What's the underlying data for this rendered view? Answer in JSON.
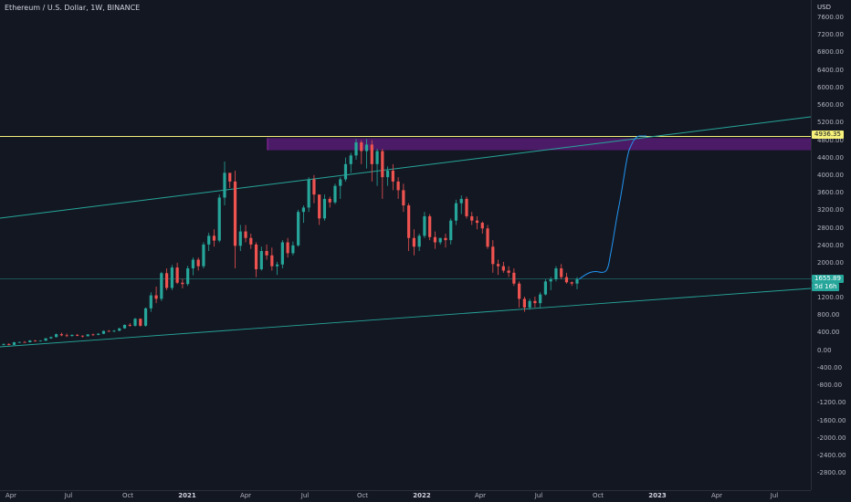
{
  "header": {
    "symbol": "Ethereum / U.S. Dollar, 1W, BINANCE",
    "currency": "USD"
  },
  "y_axis": {
    "labels": [
      "7600.00",
      "7200.00",
      "6800.00",
      "6400.00",
      "6000.00",
      "5600.00",
      "5200.00",
      "4800.00",
      "4400.00",
      "4000.00",
      "3600.00",
      "3200.00",
      "2800.00",
      "2400.00",
      "2000.00",
      "1600.00",
      "1200.00",
      "800.00",
      "400.00",
      "0.00",
      "-400.00",
      "-800.00",
      "-1200.00",
      "-1600.00",
      "-2000.00",
      "-2400.00",
      "-2800.00"
    ]
  },
  "x_axis": {
    "labels": [
      {
        "text": "Apr",
        "bold": false
      },
      {
        "text": "Jul",
        "bold": false
      },
      {
        "text": "Oct",
        "bold": false
      },
      {
        "text": "2021",
        "bold": true
      },
      {
        "text": "Apr",
        "bold": false
      },
      {
        "text": "Jul",
        "bold": false
      },
      {
        "text": "Oct",
        "bold": false
      },
      {
        "text": "2022",
        "bold": true
      },
      {
        "text": "Apr",
        "bold": false
      },
      {
        "text": "Jul",
        "bold": false
      },
      {
        "text": "Oct",
        "bold": false
      },
      {
        "text": "2023",
        "bold": true
      },
      {
        "text": "Apr",
        "bold": false
      },
      {
        "text": "Jul",
        "bold": false
      }
    ]
  },
  "price_badges": {
    "resistance": "4936.35",
    "last_price": "1655.89",
    "countdown": "5d 16h"
  },
  "colors": {
    "background": "#131722",
    "up": "#26a69a",
    "down": "#ef5350",
    "resistance_line": "#f5f17a",
    "zone_fill": "#7b1fa2",
    "trendline": "#26a69a",
    "projection": "#2196f3"
  },
  "chart_data": {
    "type": "candlestick",
    "timeframe": "1W",
    "ylim": [
      -2800,
      7600
    ],
    "grid": false,
    "annotations": {
      "horizontal_resistance": 4936.35,
      "horizontal_support": 1656,
      "zone": [
        4620,
        4900
      ],
      "ascending_channel_top": [
        {
          "x": "2020-03",
          "y": 3050
        },
        {
          "x": "2023-10",
          "y": 5350
        }
      ],
      "ascending_channel_bottom": [
        {
          "x": "2020-03",
          "y": 100
        },
        {
          "x": "2023-10",
          "y": 1450
        }
      ],
      "projected_path": [
        {
          "x": "2022-09",
          "y": 1656
        },
        {
          "x": "2022-10",
          "y": 2000
        },
        {
          "x": "2022-11",
          "y": 3600
        },
        {
          "x": "2022-12",
          "y": 4940
        },
        {
          "x": "2023-01",
          "y": 4936
        }
      ]
    },
    "candles": [
      [
        140,
        170,
        125,
        160
      ],
      [
        160,
        175,
        130,
        140
      ],
      [
        140,
        210,
        135,
        200
      ],
      [
        200,
        215,
        185,
        205
      ],
      [
        205,
        225,
        190,
        200
      ],
      [
        200,
        250,
        195,
        240
      ],
      [
        240,
        250,
        215,
        230
      ],
      [
        230,
        245,
        220,
        235
      ],
      [
        235,
        300,
        230,
        290
      ],
      [
        290,
        330,
        280,
        320
      ],
      [
        320,
        400,
        310,
        385
      ],
      [
        385,
        420,
        340,
        360
      ],
      [
        360,
        400,
        320,
        345
      ],
      [
        345,
        380,
        330,
        370
      ],
      [
        370,
        390,
        340,
        350
      ],
      [
        350,
        360,
        310,
        340
      ],
      [
        340,
        390,
        330,
        380
      ],
      [
        380,
        400,
        350,
        370
      ],
      [
        370,
        410,
        360,
        395
      ],
      [
        395,
        470,
        385,
        460
      ],
      [
        460,
        480,
        440,
        450
      ],
      [
        450,
        480,
        430,
        465
      ],
      [
        465,
        530,
        455,
        520
      ],
      [
        520,
        610,
        510,
        600
      ],
      [
        600,
        640,
        560,
        580
      ],
      [
        580,
        760,
        560,
        740
      ],
      [
        740,
        750,
        560,
        580
      ],
      [
        580,
        1000,
        560,
        980
      ],
      [
        980,
        1350,
        900,
        1280
      ],
      [
        1280,
        1480,
        1100,
        1200
      ],
      [
        1200,
        1820,
        1150,
        1790
      ],
      [
        1790,
        1900,
        1400,
        1450
      ],
      [
        1450,
        1980,
        1400,
        1920
      ],
      [
        1920,
        2030,
        1540,
        1570
      ],
      [
        1570,
        1660,
        1440,
        1540
      ],
      [
        1540,
        1960,
        1500,
        1900
      ],
      [
        1900,
        2150,
        1740,
        2100
      ],
      [
        2100,
        2150,
        1850,
        1950
      ],
      [
        1950,
        2500,
        1900,
        2450
      ],
      [
        2450,
        2720,
        2300,
        2650
      ],
      [
        2650,
        2800,
        2400,
        2540
      ],
      [
        2540,
        3600,
        2500,
        3530
      ],
      [
        3530,
        4360,
        3350,
        4100
      ],
      [
        4100,
        4050,
        3750,
        3900
      ],
      [
        3900,
        4150,
        1900,
        2420
      ],
      [
        2420,
        2900,
        2300,
        2750
      ],
      [
        2750,
        2900,
        2500,
        2600
      ],
      [
        2600,
        2700,
        2350,
        2450
      ],
      [
        2450,
        2500,
        1700,
        1880
      ],
      [
        1880,
        2400,
        1850,
        2300
      ],
      [
        2300,
        2450,
        2100,
        2200
      ],
      [
        2200,
        2380,
        1850,
        1950
      ],
      [
        1950,
        2050,
        1750,
        1990
      ],
      [
        1990,
        2550,
        1900,
        2500
      ],
      [
        2500,
        2600,
        2150,
        2250
      ],
      [
        2250,
        2520,
        2200,
        2430
      ],
      [
        2430,
        3250,
        2400,
        3200
      ],
      [
        3200,
        3350,
        2950,
        3300
      ],
      [
        3300,
        4000,
        3200,
        3950
      ],
      [
        3950,
        4050,
        3400,
        3600
      ],
      [
        3600,
        3500,
        2900,
        3050
      ],
      [
        3050,
        3600,
        3000,
        3500
      ],
      [
        3500,
        3550,
        3300,
        3420
      ],
      [
        3420,
        3850,
        3380,
        3800
      ],
      [
        3800,
        4000,
        3500,
        3950
      ],
      [
        3950,
        4450,
        3900,
        4300
      ],
      [
        4300,
        4560,
        4100,
        4500
      ],
      [
        4500,
        4880,
        4400,
        4800
      ],
      [
        4800,
        4850,
        4300,
        4600
      ],
      [
        4600,
        4880,
        4200,
        4750
      ],
      [
        4750,
        4850,
        3900,
        4300
      ],
      [
        4300,
        4650,
        3800,
        4600
      ],
      [
        4600,
        4650,
        3500,
        4000
      ],
      [
        4000,
        4250,
        3800,
        4150
      ],
      [
        4150,
        4300,
        3700,
        3900
      ],
      [
        3900,
        4000,
        3500,
        3700
      ],
      [
        3700,
        3850,
        3200,
        3350
      ],
      [
        3350,
        3400,
        2300,
        2600
      ],
      [
        2600,
        2800,
        2200,
        2400
      ],
      [
        2400,
        2700,
        2300,
        2650
      ],
      [
        2650,
        3200,
        2600,
        3100
      ],
      [
        3100,
        3150,
        2550,
        2620
      ],
      [
        2620,
        2750,
        2350,
        2500
      ],
      [
        2500,
        2600,
        2450,
        2600
      ],
      [
        2600,
        2700,
        2380,
        2550
      ],
      [
        2550,
        3050,
        2450,
        3000
      ],
      [
        3000,
        3480,
        2900,
        3400
      ],
      [
        3400,
        3580,
        3150,
        3500
      ],
      [
        3500,
        3550,
        3050,
        3100
      ],
      [
        3100,
        3200,
        2900,
        3000
      ],
      [
        3000,
        3100,
        2800,
        2950
      ],
      [
        2950,
        2980,
        2700,
        2820
      ],
      [
        2820,
        2900,
        2350,
        2400
      ],
      [
        2400,
        2550,
        1800,
        2000
      ],
      [
        2000,
        2100,
        1750,
        1950
      ],
      [
        1950,
        2050,
        1800,
        1850
      ],
      [
        1850,
        1950,
        1700,
        1800
      ],
      [
        1800,
        1900,
        1500,
        1550
      ],
      [
        1550,
        1600,
        1000,
        1200
      ],
      [
        1200,
        1250,
        900,
        1000
      ],
      [
        1000,
        1200,
        950,
        1150
      ],
      [
        1150,
        1250,
        1000,
        1100
      ],
      [
        1100,
        1350,
        1000,
        1300
      ],
      [
        1300,
        1650,
        1280,
        1600
      ],
      [
        1600,
        1700,
        1400,
        1650
      ],
      [
        1650,
        1950,
        1600,
        1900
      ],
      [
        1900,
        2000,
        1650,
        1700
      ],
      [
        1700,
        1800,
        1550,
        1580
      ],
      [
        1580,
        1600,
        1500,
        1550
      ],
      [
        1550,
        1700,
        1420,
        1656
      ]
    ]
  }
}
